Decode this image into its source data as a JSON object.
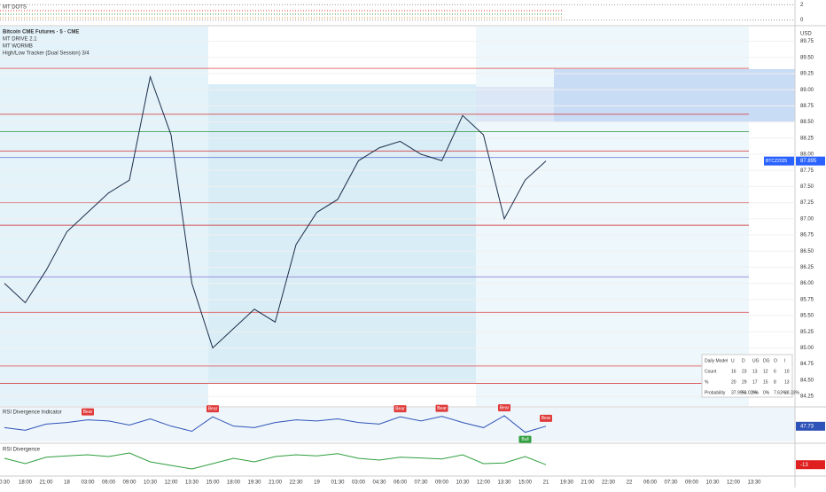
{
  "chart_data": [
    {
      "type": "dots",
      "title": "MT DOTS",
      "ylim": [
        -0.4,
        2.4
      ],
      "yticks": [
        0,
        2
      ]
    },
    {
      "type": "line",
      "title": "Bitcoin CME Futures · 5 · CME",
      "indicators": [
        "MT DRIVE 2.1",
        "MT WORMB",
        "High/Low Tracker (Dual Session) 3/4"
      ],
      "currency": "USD",
      "symbol_tag": "BTCZ2025",
      "categories": [
        "0:30",
        "18:00",
        "21:00",
        "18",
        "03:00",
        "06:00",
        "09:00",
        "10:30",
        "12:00",
        "13:30",
        "15:00",
        "18:00",
        "19:30",
        "21:00",
        "22:30",
        "19",
        "01:30",
        "03:00",
        "04:30",
        "06:00",
        "07:30",
        "09:00",
        "10:30",
        "12:00",
        "13:30",
        "15:00",
        "21",
        "19:30",
        "21:00",
        "22:30",
        "22",
        "06:00",
        "07:30",
        "09:00",
        "10:30",
        "12:00",
        "13:30"
      ],
      "series": [
        {
          "name": "Bitcoin CME Futures",
          "color": "#1b2f4a",
          "values": [
            86.0,
            85.7,
            86.2,
            86.8,
            87.1,
            87.4,
            87.6,
            89.2,
            88.3,
            86.0,
            85.0,
            85.3,
            85.6,
            85.4,
            86.6,
            87.1,
            87.3,
            87.9,
            88.1,
            88.2,
            88.0,
            87.9,
            88.6,
            88.3,
            87.0,
            87.6,
            87.895,
            null,
            null,
            null,
            null,
            null,
            null,
            null,
            null,
            null,
            null
          ]
        }
      ],
      "levels": [
        {
          "value": 89.33,
          "color": "#e05050"
        },
        {
          "value": 88.62,
          "color": "#d83a3a"
        },
        {
          "value": 88.35,
          "color": "#3a9a4a"
        },
        {
          "value": 88.05,
          "color": "#d83a3a"
        },
        {
          "value": 87.95,
          "color": "#6a7ad8"
        },
        {
          "value": 87.25,
          "color": "#e07070"
        },
        {
          "value": 86.9,
          "color": "#d02020"
        },
        {
          "value": 86.1,
          "color": "#8a7ad8"
        },
        {
          "value": 85.55,
          "color": "#e05050"
        },
        {
          "value": 84.72,
          "color": "#e05050"
        },
        {
          "value": 84.45,
          "color": "#d83a3a"
        }
      ],
      "ylim": [
        84.1,
        89.95
      ],
      "yticks": [
        {
          "value": 89.75,
          "label": "89.75"
        },
        {
          "value": 89.5,
          "label": "89.50"
        },
        {
          "value": 89.25,
          "label": "89.25"
        },
        {
          "value": 89,
          "label": "89.00"
        },
        {
          "value": 88.75,
          "label": "88.75"
        },
        {
          "value": 88.5,
          "label": "88.50"
        },
        {
          "value": 88.25,
          "label": "88.25"
        },
        {
          "value": 88,
          "label": "88.00"
        },
        {
          "value": 87.75,
          "label": "87.75"
        },
        {
          "value": 87.5,
          "label": "87.50"
        },
        {
          "value": 87.25,
          "label": "87.25"
        },
        {
          "value": 87,
          "label": "87.00"
        },
        {
          "value": 86.75,
          "label": "86.75"
        },
        {
          "value": 86.5,
          "label": "86.50"
        },
        {
          "value": 86.25,
          "label": "86.25"
        },
        {
          "value": 86,
          "label": "86.00"
        },
        {
          "value": 85.75,
          "label": "85.75"
        },
        {
          "value": 85.5,
          "label": "85.50"
        },
        {
          "value": 85.25,
          "label": "85.25"
        },
        {
          "value": 85,
          "label": "85.00"
        },
        {
          "value": 84.75,
          "label": "84.75"
        },
        {
          "value": 84.5,
          "label": "84.50"
        },
        {
          "value": 84.25,
          "label": "84.25"
        }
      ]
    },
    {
      "type": "line",
      "title": "RSI Divergence Indicator",
      "ylim": [
        20,
        80
      ],
      "series": [
        {
          "name": "RSI",
          "color": "#2f52b8",
          "values": [
            45,
            40,
            52,
            55,
            60,
            58,
            50,
            62,
            48,
            38,
            66,
            48,
            45,
            55,
            60,
            58,
            62,
            55,
            52,
            66,
            58,
            67,
            55,
            45,
            68,
            36,
            47.73,
            null,
            null,
            null,
            null,
            null,
            null,
            null,
            null,
            null,
            null
          ],
          "signals": [
            null,
            null,
            null,
            null,
            "Bear",
            null,
            null,
            null,
            null,
            null,
            "Bear",
            null,
            null,
            null,
            null,
            null,
            null,
            null,
            null,
            "Bear",
            null,
            "Bear",
            null,
            null,
            "Bear",
            "Bull",
            "Bear",
            null,
            null,
            null,
            null,
            null,
            null,
            null,
            null,
            null,
            null
          ]
        }
      ]
    },
    {
      "type": "line",
      "title": "RSI Divergence",
      "ylim": [
        -40,
        40
      ],
      "series": [
        {
          "name": "RSI Divergence",
          "color": "#2e9e3e",
          "values": [
            5,
            -10,
            8,
            12,
            15,
            10,
            20,
            -5,
            -15,
            -25,
            -10,
            5,
            -5,
            10,
            15,
            12,
            18,
            5,
            0,
            8,
            6,
            3,
            15,
            -10,
            -8,
            10,
            -13,
            null,
            null,
            null,
            null,
            null,
            null,
            null,
            null,
            null,
            null
          ]
        }
      ]
    }
  ],
  "table": {
    "header": [
      "Daily Model",
      "U",
      "D",
      "UG",
      "DG",
      "O",
      "I"
    ],
    "rows": [
      [
        "Count",
        "16",
        "23",
        "13",
        "12",
        "6",
        "10"
      ],
      [
        "%",
        "20",
        "29",
        "17",
        "15",
        "8",
        "13"
      ],
      [
        "Probability",
        "37.99%",
        "53.02%",
        "0%",
        "0%",
        "7.63%",
        "38.33%"
      ]
    ]
  }
}
